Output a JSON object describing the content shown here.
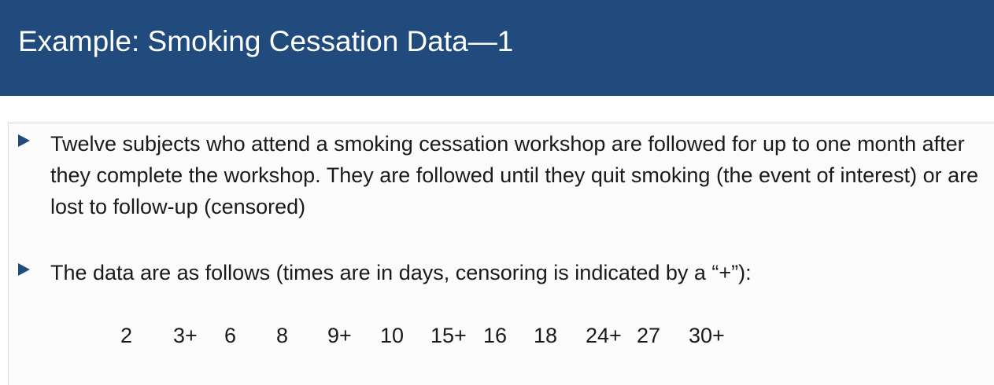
{
  "slide": {
    "title": "Example: Smoking Cessation Data—1",
    "colors": {
      "title_bar": "#214a7d",
      "title_text": "#ffffff",
      "bullet_marker": "#214a7d",
      "body_text": "#1a1a1a"
    }
  },
  "bullets": [
    {
      "icon": "triangle-right-icon",
      "text": "Twelve subjects who attend a smoking cessation workshop are followed for up to one month after they complete the workshop. They are followed until they quit smoking (the event of interest) or are lost to follow-up (censored)"
    },
    {
      "icon": "triangle-right-icon",
      "text": "The data are as follows (times are in days, censoring is indicated by a “+”):"
    }
  ],
  "data_values": [
    "2",
    "3+",
    "6",
    "8",
    "9+",
    "10",
    "15+",
    "16",
    "18",
    "24+",
    "27",
    "30+"
  ]
}
